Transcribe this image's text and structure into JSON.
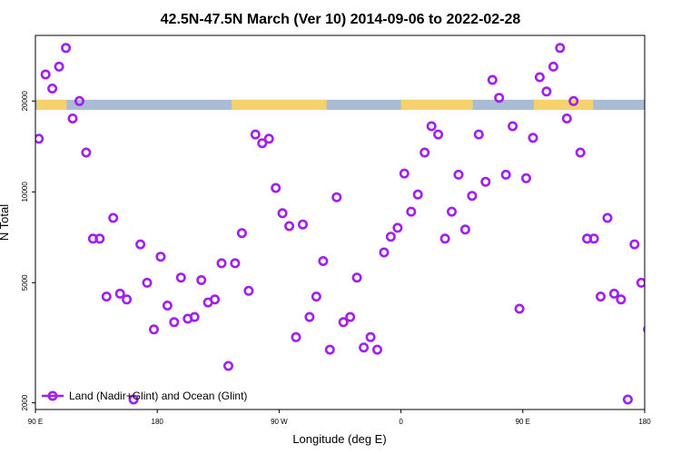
{
  "chart_data": {
    "type": "scatter",
    "title": "42.5N-47.5N March (Ver 10)   2014-09-06 to 2022-02-28",
    "xlabel": "Longitude (deg E)",
    "ylabel": "N Total",
    "x_ticks": [
      {
        "value": 90,
        "label": "90 E"
      },
      {
        "value": 180,
        "label": "180"
      },
      {
        "value": 270,
        "label": "90 W"
      },
      {
        "value": 360,
        "label": "0"
      },
      {
        "value": 450,
        "label": "90 E"
      },
      {
        "value": 540,
        "label": "180"
      }
    ],
    "y_ticks": [
      {
        "value": 2000,
        "label": "2000"
      },
      {
        "value": 5000,
        "label": "5000"
      },
      {
        "value": 10000,
        "label": "10000"
      },
      {
        "value": 20000,
        "label": "20000"
      }
    ],
    "xlim": [
      90,
      540
    ],
    "ylim": [
      1900,
      33000
    ],
    "y_scale": "log",
    "grid": false,
    "legend_position": "bottom-left",
    "land_strip": {
      "y_range": [
        18700,
        20200
      ],
      "ocean_color": "#a9bcd6",
      "land_color": "#f7d26c",
      "land_segmented": [
        [
          91,
          113
        ],
        [
          235,
          305
        ],
        [
          360,
          413
        ],
        [
          458,
          502
        ]
      ]
    },
    "series": [
      {
        "name": "Land (Nadir+Glint) and Ocean (Glint)",
        "color": "#a020f0",
        "points": [
          [
            92.5,
            15000
          ],
          [
            97.5,
            24500
          ],
          [
            102.5,
            22000
          ],
          [
            107.5,
            26000
          ],
          [
            112.5,
            30000
          ],
          [
            117.5,
            17500
          ],
          [
            122.5,
            20000
          ],
          [
            127.5,
            13500
          ],
          [
            132.5,
            7000
          ],
          [
            137.5,
            7000
          ],
          [
            142.5,
            4500
          ],
          [
            147.5,
            8200
          ],
          [
            152.5,
            4600
          ],
          [
            157.5,
            4400
          ],
          [
            162.5,
            2050
          ],
          [
            167.5,
            6700
          ],
          [
            172.5,
            5000
          ],
          [
            177.5,
            3500
          ],
          [
            182.5,
            6100
          ],
          [
            187.5,
            4200
          ],
          [
            192.5,
            3700
          ],
          [
            197.5,
            5200
          ],
          [
            202.5,
            3800
          ],
          [
            207.5,
            3850
          ],
          [
            212.5,
            5100
          ],
          [
            217.5,
            4300
          ],
          [
            222.5,
            4400
          ],
          [
            227.5,
            5800
          ],
          [
            232.5,
            2650
          ],
          [
            237.5,
            5800
          ],
          [
            242.5,
            7300
          ],
          [
            247.5,
            4700
          ],
          [
            252.5,
            15500
          ],
          [
            257.5,
            14500
          ],
          [
            262.5,
            15000
          ],
          [
            267.5,
            10300
          ],
          [
            272.5,
            8500
          ],
          [
            277.5,
            7700
          ],
          [
            282.5,
            3300
          ],
          [
            287.5,
            7800
          ],
          [
            292.5,
            3850
          ],
          [
            297.5,
            4500
          ],
          [
            302.5,
            5900
          ],
          [
            307.5,
            3000
          ],
          [
            312.5,
            9600
          ],
          [
            317.5,
            3700
          ],
          [
            322.5,
            3850
          ],
          [
            327.5,
            5200
          ],
          [
            332.5,
            3050
          ],
          [
            337.5,
            3300
          ],
          [
            342.5,
            3000
          ],
          [
            347.5,
            6300
          ],
          [
            352.5,
            7100
          ],
          [
            357.5,
            7600
          ],
          [
            362.5,
            11500
          ],
          [
            367.5,
            8600
          ],
          [
            372.5,
            9800
          ],
          [
            377.5,
            13500
          ],
          [
            382.5,
            16500
          ],
          [
            387.5,
            15500
          ],
          [
            392.5,
            7000
          ],
          [
            397.5,
            8600
          ],
          [
            402.5,
            11400
          ],
          [
            407.5,
            7500
          ],
          [
            412.5,
            9700
          ],
          [
            417.5,
            15500
          ],
          [
            422.5,
            10800
          ],
          [
            427.5,
            23500
          ],
          [
            432.5,
            20500
          ],
          [
            437.5,
            11400
          ],
          [
            442.5,
            16500
          ],
          [
            447.5,
            4100
          ],
          [
            452.5,
            11100
          ],
          [
            457.5,
            15100
          ],
          [
            462.5,
            24000
          ],
          [
            467.5,
            21500
          ],
          [
            472.5,
            26000
          ],
          [
            477.5,
            30000
          ],
          [
            482.5,
            17500
          ],
          [
            487.5,
            20000
          ],
          [
            492.5,
            13500
          ],
          [
            497.5,
            7000
          ],
          [
            502.5,
            7000
          ],
          [
            507.5,
            4500
          ],
          [
            512.5,
            8200
          ],
          [
            517.5,
            4600
          ],
          [
            522.5,
            4400
          ],
          [
            527.5,
            2050
          ],
          [
            532.5,
            6700
          ],
          [
            537.5,
            5000
          ],
          [
            542.5,
            3500
          ]
        ]
      }
    ]
  }
}
